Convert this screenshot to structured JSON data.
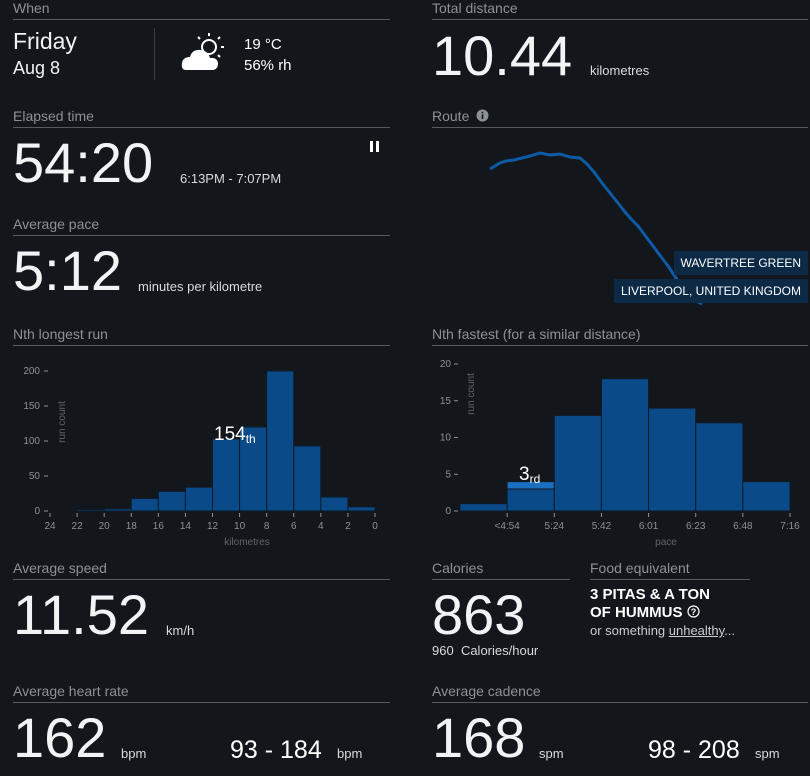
{
  "when": {
    "label": "When",
    "day": "Friday",
    "date": "Aug 8",
    "weather_icon": "partly-cloudy-icon",
    "temperature": "19 °C",
    "humidity": "56% rh"
  },
  "total_distance": {
    "label": "Total distance",
    "value": "10.44",
    "unit": "kilometres"
  },
  "elapsed": {
    "label": "Elapsed time",
    "value": "54:20",
    "range": "6:13PM - 7:07PM",
    "pause_icon": "pause-icon"
  },
  "route": {
    "label": "Route",
    "info_icon": "info-icon",
    "place": "WAVERTREE GREEN",
    "city": "LIVERPOOL, UNITED KINGDOM"
  },
  "pace": {
    "label": "Average pace",
    "value": "5:12",
    "unit": "minutes per kilometre"
  },
  "nth_longest": {
    "label": "Nth longest run",
    "rank_num": "154",
    "rank_suffix": "th",
    "chart_data": {
      "type": "bar",
      "ylabel": "run count",
      "xlabel": "kilometres",
      "ylim": [
        0,
        210
      ],
      "yticks": [
        0,
        50,
        100,
        150,
        200
      ],
      "xticks": [
        "24",
        "22",
        "20",
        "18",
        "16",
        "14",
        "12",
        "10",
        "8",
        "6",
        "4",
        "2",
        "0"
      ],
      "bins": [
        [
          24,
          22
        ],
        [
          22,
          20
        ],
        [
          20,
          18
        ],
        [
          18,
          16
        ],
        [
          16,
          14
        ],
        [
          14,
          12
        ],
        [
          12,
          10
        ],
        [
          10,
          8
        ],
        [
          8,
          6
        ],
        [
          6,
          4
        ],
        [
          4,
          2
        ],
        [
          2,
          0
        ]
      ],
      "values": [
        0,
        2,
        3,
        18,
        28,
        34,
        103,
        120,
        200,
        93,
        20,
        6
      ],
      "highlight_index": 6
    }
  },
  "nth_fastest": {
    "label": "Nth fastest (for a similar distance)",
    "rank_num": "3",
    "rank_suffix": "rd",
    "chart_data": {
      "type": "bar",
      "ylabel": "run count",
      "xlabel": "pace",
      "ylim": [
        0,
        20
      ],
      "yticks": [
        0,
        5,
        10,
        15,
        20
      ],
      "xticks": [
        "<4:54",
        "5:24",
        "5:42",
        "6:01",
        "6:23",
        "6:48",
        "7:16"
      ],
      "values": [
        1,
        4,
        13,
        18,
        14,
        12,
        4
      ],
      "highlight_index": 1,
      "highlight_part": 1
    }
  },
  "speed": {
    "label": "Average speed",
    "value": "11.52",
    "unit": "km/h"
  },
  "calories": {
    "label": "Calories",
    "value": "863",
    "rate_value": "960",
    "rate_unit": "Calories/hour"
  },
  "food": {
    "label": "Food equivalent",
    "line1": "3 PITAS & A TON",
    "line2": "OF HUMMUS",
    "help_icon": "question-icon",
    "alt_prefix": "or something ",
    "alt_link": "unhealthy",
    "alt_suffix": "..."
  },
  "heart": {
    "label": "Average heart rate",
    "value": "162",
    "unit": "bpm",
    "range": "93 - 184",
    "range_unit": "bpm"
  },
  "cadence": {
    "label": "Average cadence",
    "value": "168",
    "unit": "spm",
    "range": "98 - 208",
    "range_unit": "spm"
  }
}
